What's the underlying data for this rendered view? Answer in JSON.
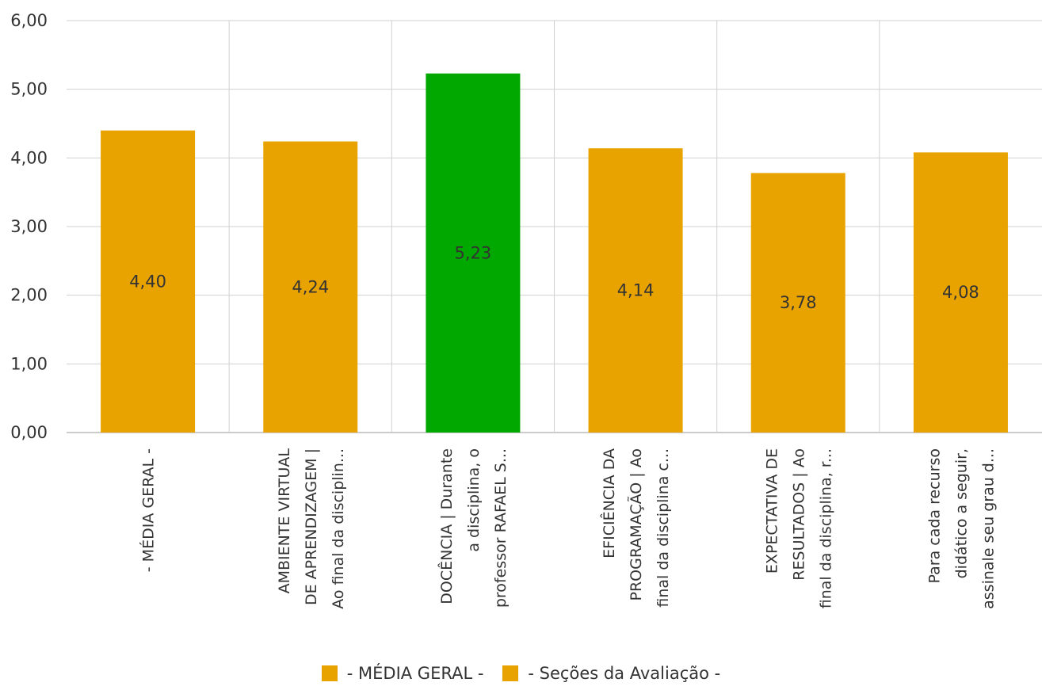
{
  "chart_data": {
    "type": "bar",
    "categories": [
      [
        "- MÉDIA GERAL -"
      ],
      [
        "AMBIENTE VIRTUAL",
        "DE APRENDIZAGEM |",
        "Ao final da disciplin..."
      ],
      [
        "DOCÊNCIA | Durante",
        "a disciplina, o",
        "professor RAFAEL S..."
      ],
      [
        "EFICIÊNCIA DA",
        "PROGRAMAÇÃO | Ao",
        "final da disciplina c..."
      ],
      [
        "EXPECTATIVA DE",
        "RESULTADOS | Ao",
        "final da disciplina, r..."
      ],
      [
        "Para cada recurso",
        "didático a seguir,",
        "assinale seu grau d..."
      ]
    ],
    "values": [
      4.4,
      4.24,
      5.23,
      4.14,
      3.78,
      4.08
    ],
    "data_labels": [
      "4,40",
      "4,24",
      "5,23",
      "4,14",
      "3,78",
      "4,08"
    ],
    "bar_colors": [
      "#E8A300",
      "#E8A300",
      "#00A800",
      "#E8A300",
      "#E8A300",
      "#E8A300"
    ],
    "yticks": [
      "0,00",
      "1,00",
      "2,00",
      "3,00",
      "4,00",
      "5,00",
      "6,00"
    ],
    "ylim": [
      0,
      6
    ],
    "grid": true,
    "legend": {
      "placement": "bottom",
      "entries": [
        {
          "label": "- MÉDIA GERAL -",
          "color": "#E8A300"
        },
        {
          "label": "- Seções da Avaliação -",
          "color": "#E8A300"
        }
      ]
    }
  }
}
